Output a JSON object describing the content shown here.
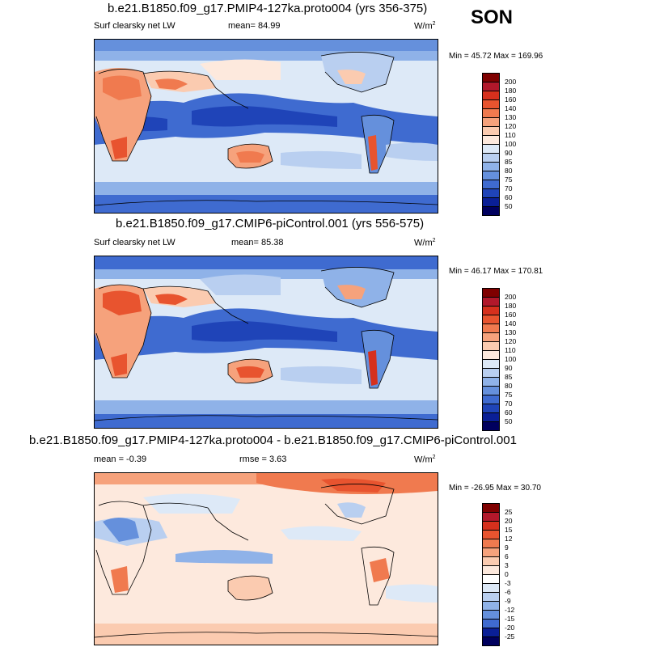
{
  "season": "SON",
  "panels": [
    {
      "title": "b.e21.B1850.f09_g17.PMIP4-127ka.proto004 (yrs 356-375)",
      "left": "Surf clearsky net LW",
      "middle": "mean=  84.99",
      "units": "W/m",
      "units_sup": "2",
      "minmax": "Min =  45.72 Max = 169.96",
      "colorbar": {
        "labels": [
          "200",
          "180",
          "160",
          "140",
          "130",
          "120",
          "110",
          "100",
          "90",
          "85",
          "80",
          "75",
          "70",
          "60",
          "50"
        ],
        "colors": [
          "#7f0000",
          "#b2182b",
          "#d6301d",
          "#e8542f",
          "#f07a4f",
          "#f6a27c",
          "#fbcbb0",
          "#fde9dd",
          "#dde9f7",
          "#b9cff0",
          "#8fb2e8",
          "#6590dc",
          "#3f6bd0",
          "#1f44b8",
          "#0a1f96",
          "#00005e"
        ]
      }
    },
    {
      "title": "b.e21.B1850.f09_g17.CMIP6-piControl.001 (yrs 556-575)",
      "left": "Surf clearsky net LW",
      "middle": "",
      "units": "W/m",
      "units_sup": "2",
      "mean_right": "mean=  85.38",
      "minmax": "Min =  46.17 Max = 170.81",
      "colorbar": {
        "labels": [
          "200",
          "180",
          "160",
          "140",
          "130",
          "120",
          "110",
          "100",
          "90",
          "85",
          "80",
          "75",
          "70",
          "60",
          "50"
        ],
        "colors": [
          "#7f0000",
          "#b2182b",
          "#d6301d",
          "#e8542f",
          "#f07a4f",
          "#f6a27c",
          "#fbcbb0",
          "#fde9dd",
          "#dde9f7",
          "#b9cff0",
          "#8fb2e8",
          "#6590dc",
          "#3f6bd0",
          "#1f44b8",
          "#0a1f96",
          "#00005e"
        ]
      }
    },
    {
      "title": "b.e21.B1850.f09_g17.PMIP4-127ka.proto004 - b.e21.B1850.f09_g17.CMIP6-piControl.001",
      "left": "mean =  -0.39",
      "middle": "rmse =   3.63",
      "units": "W/m",
      "units_sup": "2",
      "minmax": "Min = -26.95 Max =  30.70",
      "colorbar": {
        "labels": [
          "25",
          "20",
          "15",
          "12",
          "9",
          "6",
          "3",
          "0",
          "-3",
          "-6",
          "-9",
          "-12",
          "-15",
          "-20",
          "-25"
        ],
        "colors": [
          "#7f0000",
          "#b2182b",
          "#d6301d",
          "#e8542f",
          "#f07a4f",
          "#f6a27c",
          "#fbcbb0",
          "#fde9dd",
          "#ffffff",
          "#dde9f7",
          "#b9cff0",
          "#8fb2e8",
          "#6590dc",
          "#3f6bd0",
          "#0a1f96",
          "#00005e"
        ]
      }
    }
  ]
}
